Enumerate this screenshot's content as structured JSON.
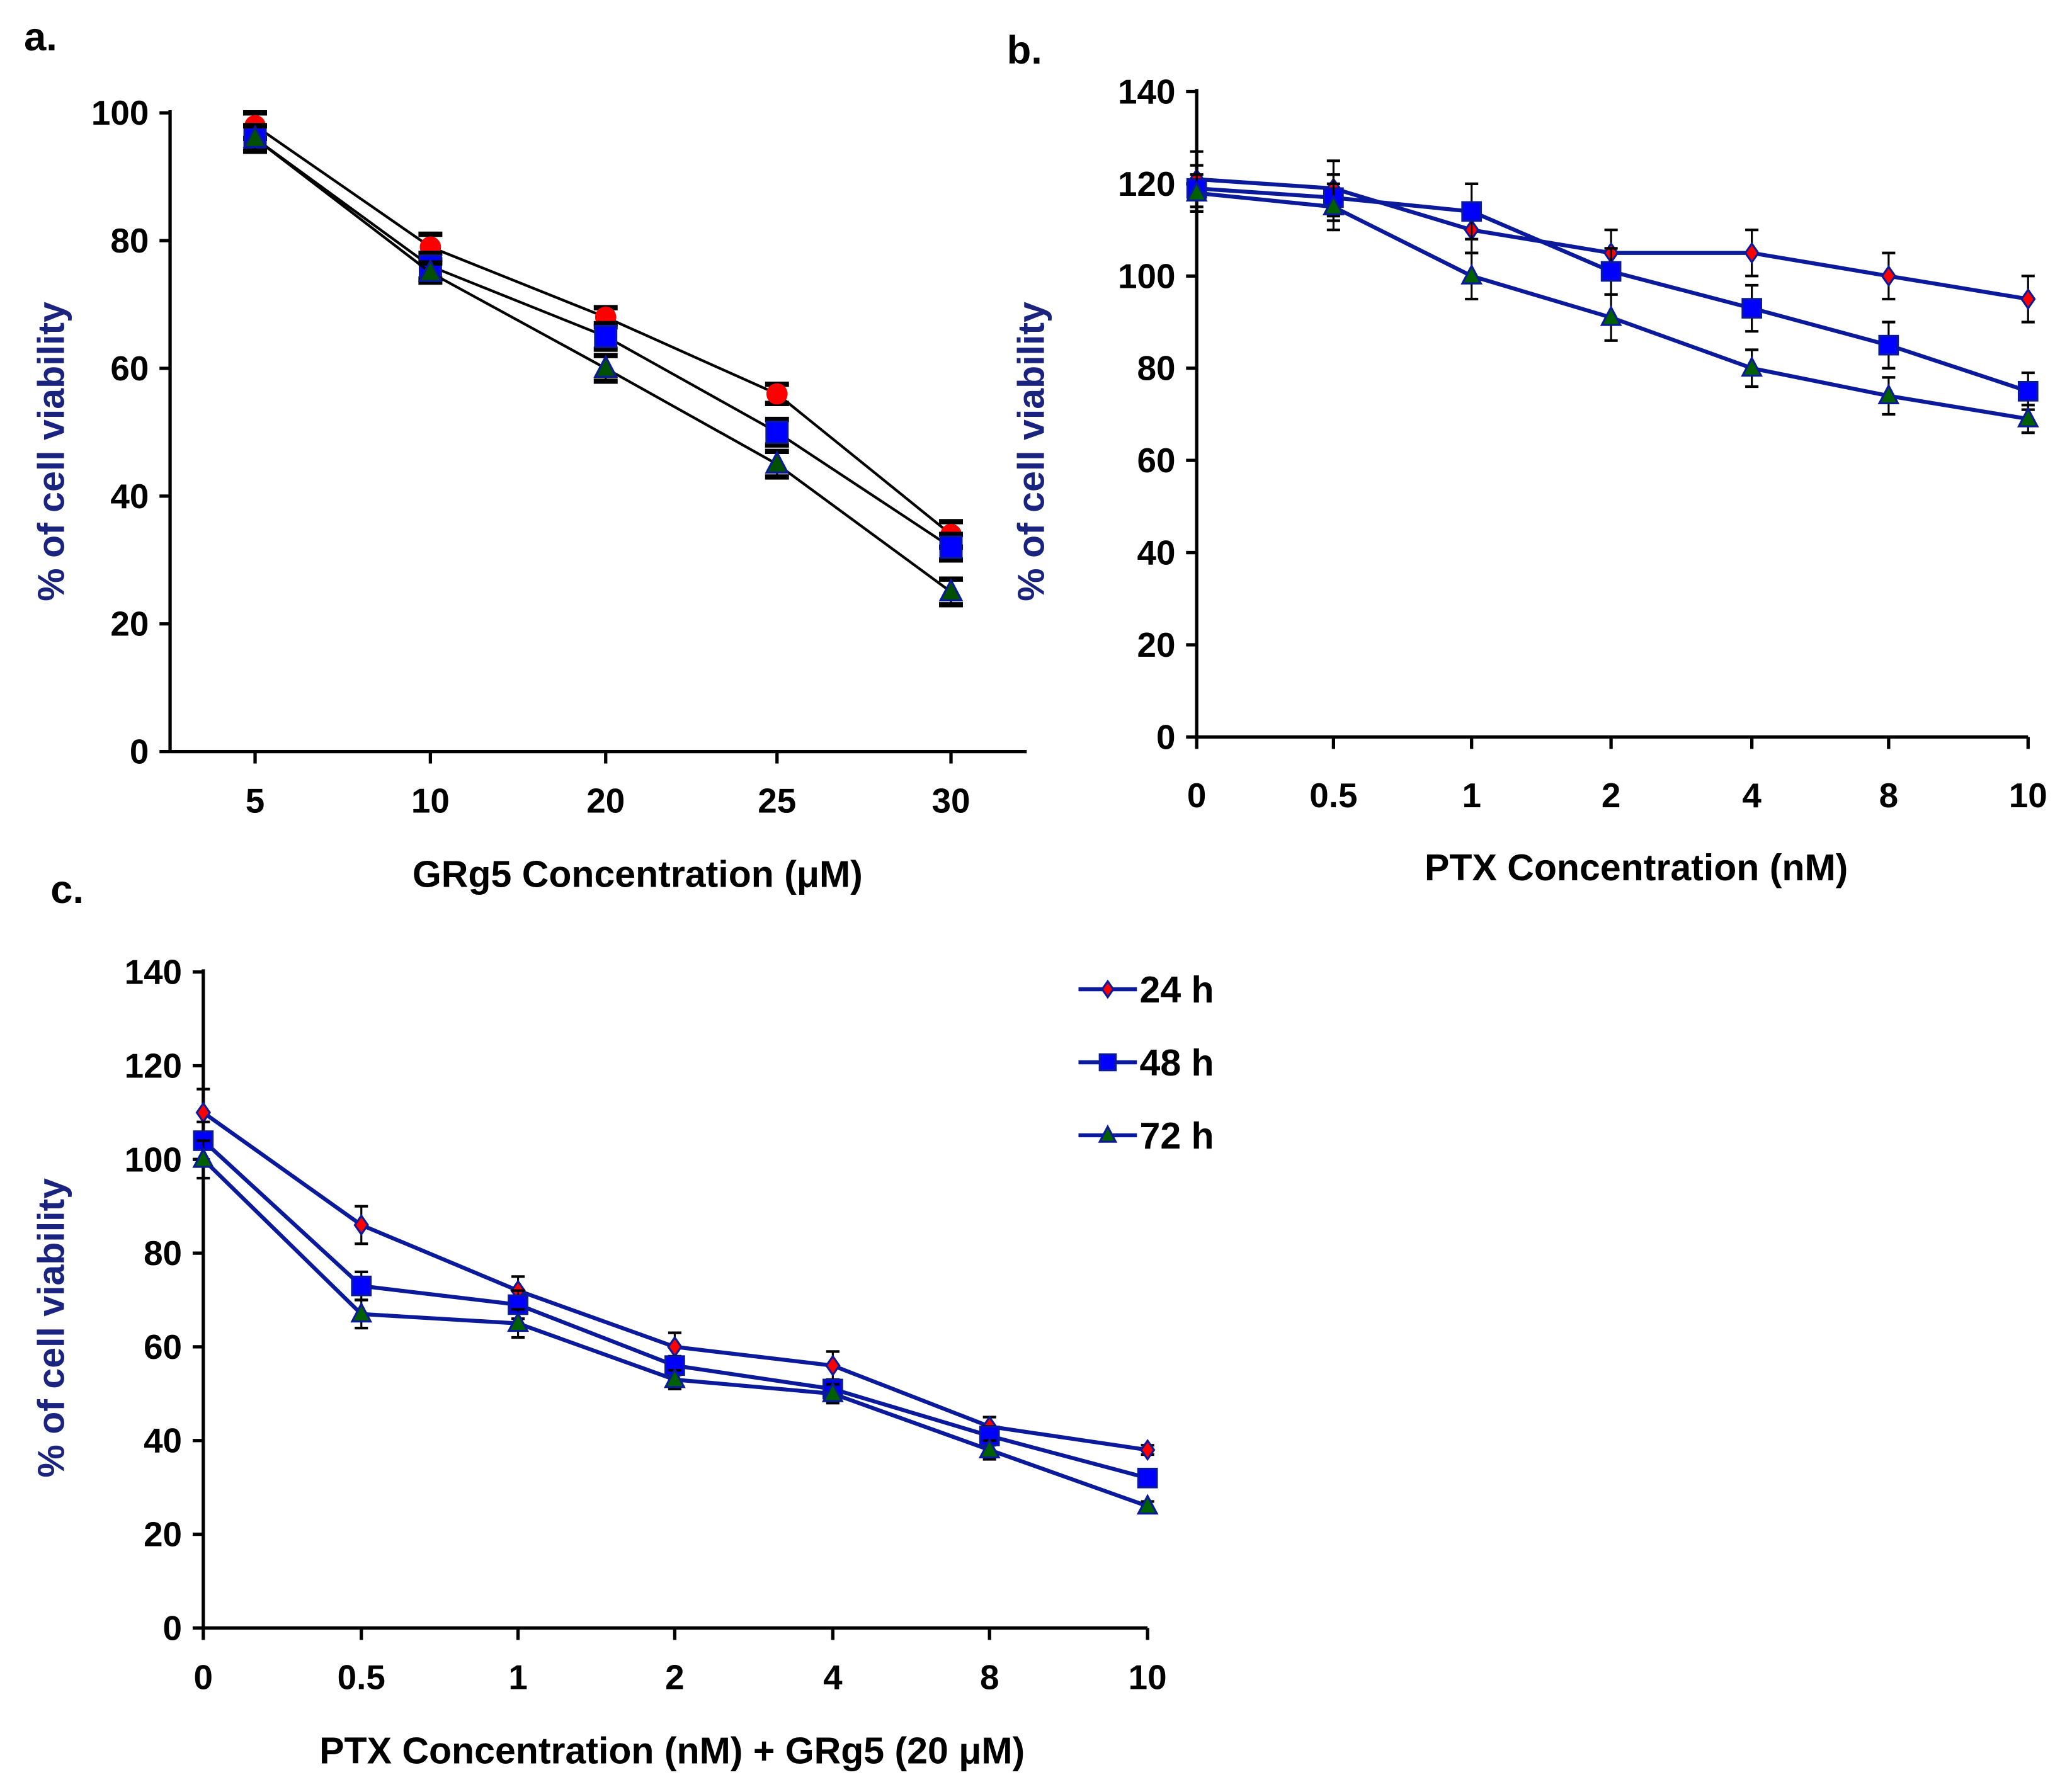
{
  "chart_data": [
    {
      "panel": "a.",
      "type": "line",
      "xlabel": "GRg5 Concentration (μM)",
      "ylabel": "% of cell viability",
      "categories": [
        "5",
        "10",
        "20",
        "25",
        "30"
      ],
      "yticks": [
        "0",
        "20",
        "40",
        "60",
        "80",
        "100"
      ],
      "ylim": [
        0,
        100
      ],
      "series": [
        {
          "name": "24 h",
          "marker": "circle",
          "color": "#ff0000",
          "line": "#000000",
          "values": [
            98,
            79,
            68,
            56,
            34
          ],
          "err": [
            2,
            2,
            1.5,
            1.5,
            2
          ]
        },
        {
          "name": "48 h",
          "marker": "square",
          "color": "#0000ff",
          "line": "#000000",
          "values": [
            96,
            76,
            65,
            50,
            32
          ],
          "err": [
            2,
            2,
            2,
            2,
            2
          ]
        },
        {
          "name": "72 h",
          "marker": "triangle",
          "color": "#005000",
          "line": "#000000",
          "values": [
            96,
            75,
            60,
            45,
            25
          ],
          "err": [
            2,
            1.5,
            2,
            2,
            2
          ]
        }
      ]
    },
    {
      "panel": "b.",
      "type": "line",
      "xlabel": "PTX Concentration (nM)",
      "ylabel": "% of cell viability",
      "categories": [
        "0",
        "0.5",
        "1",
        "2",
        "4",
        "8",
        "10"
      ],
      "yticks": [
        "0",
        "20",
        "40",
        "60",
        "80",
        "100",
        "120",
        "140"
      ],
      "ylim": [
        0,
        140
      ],
      "series": [
        {
          "name": "24 h",
          "marker": "diamond",
          "color": "#ff0000",
          "line": "#0a1a9a",
          "values": [
            121,
            119,
            110,
            105,
            105,
            100,
            95
          ],
          "err": [
            6,
            6,
            5,
            5,
            5,
            5,
            5
          ]
        },
        {
          "name": "48 h",
          "marker": "square",
          "color": "#0000ff",
          "line": "#0a1a9a",
          "values": [
            119,
            117,
            114,
            101,
            93,
            85,
            75
          ],
          "err": [
            5,
            5,
            6,
            5,
            5,
            5,
            4
          ]
        },
        {
          "name": "72 h",
          "marker": "triangle",
          "color": "#006000",
          "line": "#0a1a9a",
          "values": [
            118,
            115,
            100,
            91,
            80,
            74,
            69
          ],
          "err": [
            4,
            5,
            5,
            5,
            4,
            4,
            3
          ]
        }
      ]
    },
    {
      "panel": "c.",
      "type": "line",
      "xlabel": "PTX Concentration (nM) + GRg5 (20 μM)",
      "ylabel": "% of cell viability",
      "categories": [
        "0",
        "0.5",
        "1",
        "2",
        "4",
        "8",
        "10"
      ],
      "yticks": [
        "0",
        "20",
        "40",
        "60",
        "80",
        "100",
        "120",
        "140"
      ],
      "ylim": [
        0,
        140
      ],
      "series": [
        {
          "name": "24 h",
          "marker": "diamond",
          "color": "#ff0000",
          "line": "#0a1a9a",
          "values": [
            110,
            86,
            72,
            60,
            56,
            43,
            38
          ],
          "err": [
            5,
            4,
            3,
            3,
            3,
            2,
            1
          ]
        },
        {
          "name": "48 h",
          "marker": "square",
          "color": "#0000ff",
          "line": "#0a1a9a",
          "values": [
            104,
            73,
            69,
            56,
            51,
            41,
            32
          ],
          "err": [
            4,
            3,
            3,
            2,
            2,
            2,
            1
          ]
        },
        {
          "name": "72 h",
          "marker": "triangle",
          "color": "#006000",
          "line": "#0a1a9a",
          "values": [
            100,
            67,
            65,
            53,
            50,
            38,
            26
          ],
          "err": [
            4,
            3,
            3,
            2,
            2,
            2,
            1
          ]
        }
      ]
    }
  ],
  "legend": {
    "items": [
      "24 h",
      "48 h",
      "72 h"
    ],
    "placement": "right of panel c"
  }
}
